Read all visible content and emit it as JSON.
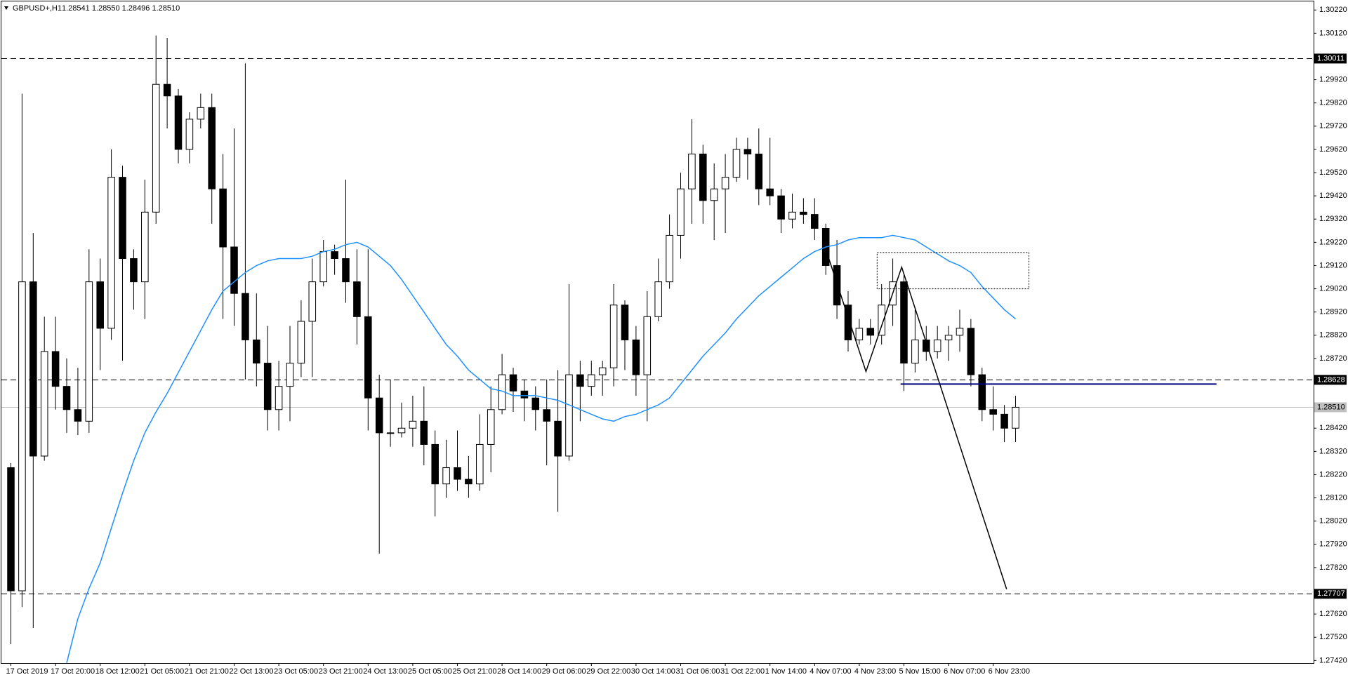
{
  "chart_data": {
    "type": "candlestick",
    "symbol": "GBPUSD+,H1",
    "ohlc_header": "1.28541 1.28550 1.28496 1.28510",
    "categories": [
      "17 Oct 2019",
      null,
      null,
      null,
      "17 Oct 20:00",
      null,
      null,
      null,
      "18 Oct 12:00",
      null,
      null,
      null,
      "21 Oct 05:00",
      null,
      null,
      null,
      "21 Oct 21:00",
      null,
      null,
      null,
      "22 Oct 13:00",
      null,
      null,
      null,
      "23 Oct 05:00",
      null,
      null,
      null,
      "23 Oct 21:00",
      null,
      null,
      null,
      "24 Oct 13:00",
      null,
      null,
      null,
      "25 Oct 05:00",
      null,
      null,
      null,
      "25 Oct 21:00",
      null,
      null,
      null,
      "28 Oct 14:00",
      null,
      null,
      null,
      "29 Oct 06:00",
      null,
      null,
      null,
      "29 Oct 22:00",
      null,
      null,
      null,
      "30 Oct 14:00",
      null,
      null,
      null,
      "31 Oct 06:00",
      null,
      null,
      null,
      "31 Oct 22:00",
      null,
      null,
      null,
      "1 Nov 14:00",
      null,
      null,
      null,
      "4 Nov 07:00",
      null,
      null,
      null,
      "4 Nov 23:00",
      null,
      null,
      null,
      "5 Nov 15:00",
      null,
      null,
      null,
      "6 Nov 07:00",
      null,
      null,
      null,
      "6 Nov 23:00",
      null,
      null
    ],
    "open": [
      1.2825,
      1.2772,
      1.2905,
      1.283,
      1.2875,
      1.286,
      1.285,
      1.2845,
      1.2905,
      1.2885,
      1.295,
      1.2915,
      1.2905,
      1.2935,
      1.299,
      1.2985,
      1.2962,
      1.2975,
      1.298,
      1.2945,
      1.292,
      1.29,
      1.288,
      1.287,
      1.285,
      1.286,
      1.287,
      1.2888,
      1.2905,
      1.2918,
      1.2915,
      1.2905,
      1.289,
      1.2855,
      1.284,
      1.284,
      1.2842,
      1.2845,
      1.2835,
      1.2818,
      1.2825,
      1.282,
      1.2818,
      1.2835,
      1.285,
      1.2865,
      1.2858,
      1.2855,
      1.285,
      1.2845,
      1.283,
      1.2865,
      1.286,
      1.2865,
      1.2868,
      1.2895,
      1.288,
      1.2865,
      1.289,
      1.2905,
      1.2925,
      1.2945,
      1.296,
      1.294,
      1.2945,
      1.295,
      1.2962,
      1.296,
      1.2945,
      1.2942,
      1.2932,
      1.2935,
      1.2934,
      1.2928,
      1.2912,
      1.2895,
      1.288,
      1.2885,
      1.2882,
      1.2895,
      1.2905,
      1.287,
      1.288,
      1.2875,
      1.288,
      1.2882,
      1.2885,
      1.2865,
      1.285,
      1.2848,
      1.2842
    ],
    "high": [
      1.2827,
      1.2986,
      1.2926,
      1.289,
      1.289,
      1.2872,
      1.2868,
      1.2919,
      1.2915,
      1.2962,
      1.2955,
      1.2919,
      1.2949,
      1.3011,
      1.301,
      1.2988,
      1.2978,
      1.2986,
      1.2986,
      1.296,
      1.2971,
      1.2999,
      1.29,
      1.2886,
      1.2871,
      1.2886,
      1.2897,
      1.2915,
      1.2923,
      1.2921,
      1.2949,
      1.2919,
      1.2919,
      1.2865,
      1.2863,
      1.2853,
      1.2856,
      1.286,
      1.2841,
      1.2837,
      1.2841,
      1.283,
      1.2848,
      1.286,
      1.2874,
      1.2868,
      1.2863,
      1.286,
      1.2863,
      1.2867,
      1.2904,
      1.2871,
      1.2871,
      1.2871,
      1.2904,
      1.2897,
      1.2886,
      1.2901,
      1.2915,
      1.2934,
      1.2952,
      1.2975,
      1.2964,
      1.2956,
      1.296,
      1.2967,
      1.2967,
      1.2971,
      1.2967,
      1.2945,
      1.2943,
      1.2941,
      1.2941,
      1.293,
      1.2923,
      1.2901,
      1.2889,
      1.2889,
      1.2904,
      1.2915,
      1.2908,
      1.2893,
      1.2886,
      1.2886,
      1.2886,
      1.2893,
      1.2889,
      1.2868,
      1.286,
      1.2852,
      1.2856
    ],
    "low": [
      1.2749,
      1.2765,
      1.2756,
      1.2828,
      1.285,
      1.284,
      1.2839,
      1.284,
      1.2867,
      1.288,
      1.2871,
      1.2893,
      1.2889,
      1.293,
      1.2971,
      1.2956,
      1.2956,
      1.2971,
      1.293,
      1.2889,
      1.2886,
      1.2863,
      1.286,
      1.2841,
      1.2841,
      1.2845,
      1.2864,
      1.2864,
      1.2903,
      1.2908,
      1.2896,
      1.2878,
      1.2841,
      1.2788,
      1.2834,
      1.2838,
      1.2834,
      1.2826,
      1.2804,
      1.2812,
      1.2815,
      1.2812,
      1.2815,
      1.2823,
      1.2848,
      1.2849,
      1.2845,
      1.2841,
      1.2826,
      1.2806,
      1.2828,
      1.2845,
      1.2856,
      1.2856,
      1.286,
      1.2867,
      1.2856,
      1.2845,
      1.2888,
      1.2902,
      1.2915,
      1.293,
      1.293,
      1.2923,
      1.2926,
      1.2948,
      1.2949,
      1.2938,
      1.2938,
      1.2926,
      1.2928,
      1.293,
      1.2923,
      1.2908,
      1.2889,
      1.2875,
      1.2878,
      1.2878,
      1.2878,
      1.2886,
      1.2858,
      1.2866,
      1.2871,
      1.2872,
      1.2871,
      1.2875,
      1.286,
      1.2845,
      1.2841,
      1.2836,
      1.2836
    ],
    "close": [
      1.2772,
      1.2905,
      1.283,
      1.2875,
      1.286,
      1.285,
      1.2845,
      1.2905,
      1.2885,
      1.295,
      1.2915,
      1.2905,
      1.2935,
      1.299,
      1.2985,
      1.2962,
      1.2975,
      1.298,
      1.2945,
      1.292,
      1.29,
      1.288,
      1.287,
      1.285,
      1.286,
      1.287,
      1.2888,
      1.2905,
      1.2918,
      1.2915,
      1.2905,
      1.289,
      1.2855,
      1.284,
      1.284,
      1.2842,
      1.2845,
      1.2835,
      1.2818,
      1.2825,
      1.282,
      1.2818,
      1.2835,
      1.285,
      1.2865,
      1.2858,
      1.2855,
      1.285,
      1.2845,
      1.283,
      1.2865,
      1.286,
      1.2865,
      1.2868,
      1.2895,
      1.288,
      1.2865,
      1.289,
      1.2905,
      1.2925,
      1.2945,
      1.296,
      1.294,
      1.2945,
      1.295,
      1.2962,
      1.296,
      1.2945,
      1.2942,
      1.2932,
      1.2935,
      1.2934,
      1.2928,
      1.2912,
      1.2895,
      1.288,
      1.2885,
      1.2882,
      1.2895,
      1.2905,
      1.287,
      1.288,
      1.2875,
      1.288,
      1.2882,
      1.2885,
      1.2865,
      1.285,
      1.2848,
      1.2842,
      1.2851
    ],
    "ma": {
      "color": "#1e90ff",
      "values": [
        null,
        null,
        null,
        null,
        null,
        1.2741,
        1.276,
        1.2773,
        1.2784,
        1.2799,
        1.2814,
        1.2828,
        1.284,
        1.2849,
        1.2857,
        1.2866,
        1.2875,
        1.2884,
        1.2893,
        1.2901,
        1.2905,
        1.2909,
        1.2912,
        1.2914,
        1.2915,
        1.2915,
        1.2915,
        1.2916,
        1.2918,
        1.2919,
        1.2921,
        1.2922,
        1.292,
        1.2916,
        1.2912,
        1.2906,
        1.2899,
        1.2892,
        1.2885,
        1.2878,
        1.2873,
        1.2867,
        1.2863,
        1.2859,
        1.2858,
        1.2856,
        1.2856,
        1.2856,
        1.2855,
        1.2854,
        1.2852,
        1.285,
        1.2848,
        1.2846,
        1.2845,
        1.2847,
        1.2848,
        1.285,
        1.2852,
        1.2855,
        1.2861,
        1.2867,
        1.2873,
        1.2878,
        1.2883,
        1.2889,
        1.2894,
        1.2899,
        1.2903,
        1.2907,
        1.2911,
        1.2915,
        1.2918,
        1.292,
        1.2921,
        1.2923,
        1.2924,
        1.2924,
        1.2924,
        1.2925,
        1.2924,
        1.2923,
        1.292,
        1.2917,
        1.2914,
        1.2912,
        1.2909,
        1.2903,
        1.2898,
        1.2893,
        1.2889
      ]
    },
    "levels": [
      1.30011,
      1.28628,
      1.27707
    ],
    "bid": {
      "value": 1.2851,
      "label": "1.28510"
    },
    "trendline": {
      "x": [
        73.0,
        76.6,
        79.8,
        89.2
      ],
      "y": [
        1.2919,
        1.28664,
        1.29113,
        1.27727
      ]
    },
    "box": {
      "x": [
        77.6,
        91.2
      ],
      "y": [
        1.2902,
        1.29176
      ]
    },
    "hline": {
      "x": [
        79.7,
        108.0
      ],
      "value": 1.2861,
      "color": "#000080"
    },
    "xlim": [
      -0.85,
      116.7
    ],
    "ylim": [
      1.30257,
      1.27409
    ],
    "yticks": [
      {
        "value": 1.3022,
        "label": "1.30220"
      },
      {
        "value": 1.3012,
        "label": "1.30120"
      },
      {
        "value": 1.2992,
        "label": "1.29920"
      },
      {
        "value": 1.2982,
        "label": "1.29820"
      },
      {
        "value": 1.2972,
        "label": "1.29720"
      },
      {
        "value": 1.2962,
        "label": "1.29620"
      },
      {
        "value": 1.2952,
        "label": "1.29520"
      },
      {
        "value": 1.2942,
        "label": "1.29420"
      },
      {
        "value": 1.2932,
        "label": "1.29320"
      },
      {
        "value": 1.2922,
        "label": "1.29220"
      },
      {
        "value": 1.2912,
        "label": "1.29120"
      },
      {
        "value": 1.2902,
        "label": "1.29020"
      },
      {
        "value": 1.2892,
        "label": "1.28920"
      },
      {
        "value": 1.2882,
        "label": "1.28820"
      },
      {
        "value": 1.2872,
        "label": "1.28720"
      },
      {
        "value": 1.2842,
        "label": "1.28420"
      },
      {
        "value": 1.2832,
        "label": "1.28320"
      },
      {
        "value": 1.2822,
        "label": "1.28220"
      },
      {
        "value": 1.2812,
        "label": "1.28120"
      },
      {
        "value": 1.2802,
        "label": "1.28020"
      },
      {
        "value": 1.2792,
        "label": "1.27920"
      },
      {
        "value": 1.2782,
        "label": "1.27820"
      },
      {
        "value": 1.2762,
        "label": "1.27620"
      },
      {
        "value": 1.2752,
        "label": "1.27520"
      },
      {
        "value": 1.2742,
        "label": "1.27420"
      }
    ],
    "grid": false,
    "up_color": "#ffffff",
    "down_color": "#000000",
    "line_color": "#000000"
  }
}
